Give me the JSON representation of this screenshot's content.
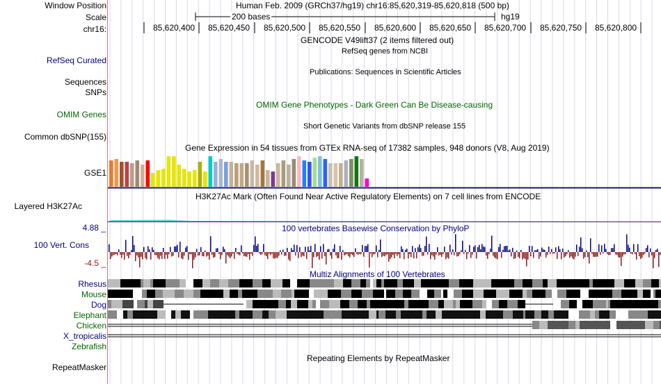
{
  "header": {
    "window_position_label": "Window Position",
    "scale_label": "Scale",
    "chrom_label": "chr16:",
    "position_text": "Human Feb. 2009 (GRCh37/hg19)   chr16:85,620,319-85,620,818 (500 bp)",
    "scale_text": "200 bases",
    "assembly": "hg19",
    "ruler_ticks": [
      "85,620,400",
      "85,620,450",
      "85,620,500",
      "85,620,550",
      "85,620,600",
      "85,620,650",
      "85,620,700",
      "85,620,750",
      "85,620,800"
    ]
  },
  "tracks": {
    "gencode_title": "GENCODE V49lift37 (2 items filtered out)",
    "refseq_label": "RefSeq Curated",
    "refseq_title": "RefSeq genes from NCBI",
    "sequences_label": "Sequences",
    "snps_label": "SNPs",
    "publications_title": "Publications: Sequences in Scientific Articles",
    "omim_label": "OMIM Genes",
    "omim_title": "OMIM Gene Phenotypes - Dark Green Can Be Disease-causing",
    "dbsnp_label": "Common dbSNP(155)",
    "dbsnp_title": "Short Genetic Variants from dbSNP release 155",
    "gtex_title": "Gene Expression in 54 tissues from GTEx RNA-seq of 17382 samples, 948 donors (V8, Aug 2019)",
    "gtex_label": "GSE1",
    "h3k27ac_label": "Layered H3K27Ac",
    "h3k27ac_title": "H3K27Ac Mark (Often Found Near Active Regulatory Elements) on 7 cell lines from ENCODE",
    "cons_label": "100 Vert. Cons",
    "cons_max": "4.88 _",
    "cons_min": "-4.5 _",
    "cons_title": "100 vertebrates Basewise Conservation by PhyloP",
    "multiz_title": "Multiz Alignments of 100 Vertebrates",
    "species": [
      "Rhesus",
      "Mouse",
      "Dog",
      "Elephant",
      "Chicken",
      "X_tropicalis",
      "Zebrafish"
    ],
    "repeat_label": "RepeatMasker",
    "repeat_title": "Repeating Elements by RepeatMasker"
  },
  "colors": {
    "navy": "#000080",
    "dark_green": "#006400",
    "conservation_pos": "#000080",
    "conservation_neg": "#8b1a1a",
    "grid": "#d8d8e8",
    "gtex_bars": [
      "#e87d2b",
      "#ee9a4d",
      "#a0522d",
      "#c24041",
      "#b8a08a",
      "#a08878",
      "#ccb098",
      "#ff0000",
      "#e6e600",
      "#e6e600",
      "#e6e600",
      "#e6e600",
      "#e6e600",
      "#e6e600",
      "#e6e600",
      "#e6e600",
      "#e6e600",
      "#b0b000",
      "#e6e600",
      "#00cccc",
      "#9db0d0",
      "#aab8cc",
      "#7aa0e0",
      "#c8b090",
      "#b8a080",
      "#c0a888",
      "#a89070",
      "#c8b8a8",
      "#d0b8a0",
      "#a07840",
      "#c8b498",
      "#7a3c8c",
      "#cab89a",
      "#aa9a80",
      "#b8b0a0",
      "#9a8a70",
      "#ffb6c1",
      "#2080ff",
      "#3050ff",
      "#a0e090",
      "#7cc0e0",
      "#3060ff",
      "#c8c0a8",
      "#d4c4a8",
      "#c0b090",
      "#aab0c0",
      "#7c9060",
      "#107810",
      "#b8b0a0",
      "#ff00cc"
    ]
  }
}
